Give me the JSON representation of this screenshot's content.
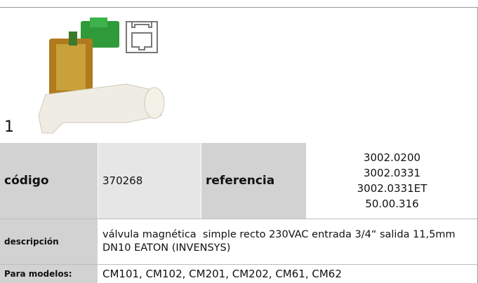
{
  "figure": {
    "label": "1"
  },
  "table": {
    "rows": [
      [
        "código",
        "370268",
        "referencia",
        [
          "3002.0200",
          "3002.0331",
          "3002.0331ET",
          "50.00.316"
        ]
      ],
      [
        "descripción",
        "válvula magnética  simple recto 230VAC entrada 3/4“ salida 11,5mm DN10 EATON (INVENSYS)"
      ],
      [
        "Para modelos:",
        "CM101, CM102, CM201, CM202, CM61, CM62"
      ]
    ]
  }
}
